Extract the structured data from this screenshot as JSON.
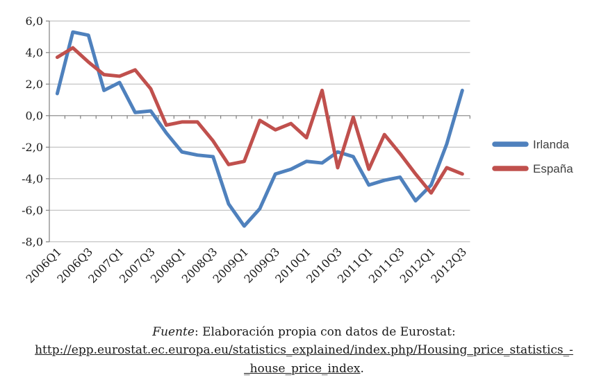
{
  "chart_data": {
    "type": "line",
    "x_categories": [
      "2006Q1",
      "2006Q2",
      "2006Q3",
      "2006Q4",
      "2007Q1",
      "2007Q2",
      "2007Q3",
      "2007Q4",
      "2008Q1",
      "2008Q2",
      "2008Q3",
      "2008Q4",
      "2009Q1",
      "2009Q2",
      "2009Q3",
      "2009Q4",
      "2010Q1",
      "2010Q2",
      "2010Q3",
      "2010Q4",
      "2011Q1",
      "2011Q2",
      "2011Q3",
      "2011Q4",
      "2012Q1",
      "2012Q2",
      "2012Q3"
    ],
    "x_tick_labels": [
      "2006Q1",
      "2006Q3",
      "2007Q1",
      "2007Q3",
      "2008Q1",
      "2008Q3",
      "2009Q1",
      "2009Q3",
      "2010Q1",
      "2010Q3",
      "2011Q1",
      "2011Q3",
      "2012Q1",
      "2012Q3"
    ],
    "series": [
      {
        "name": "Irlanda",
        "color": "#4F81BD",
        "values": [
          1.4,
          5.3,
          5.1,
          1.6,
          2.1,
          0.2,
          0.3,
          -1.1,
          -2.3,
          -2.5,
          -2.6,
          -5.6,
          -7.0,
          -5.9,
          -3.7,
          -3.4,
          -2.9,
          -3.0,
          -2.3,
          -2.6,
          -4.4,
          -4.1,
          -3.9,
          -5.4,
          -4.4,
          -1.8,
          1.6
        ]
      },
      {
        "name": "España",
        "color": "#C0504D",
        "values": [
          3.7,
          4.3,
          3.4,
          2.6,
          2.5,
          2.9,
          1.7,
          -0.6,
          -0.4,
          -0.4,
          -1.6,
          -3.1,
          -2.9,
          -0.3,
          -0.9,
          -0.5,
          -1.4,
          1.6,
          -3.3,
          -0.1,
          -3.4,
          -1.2,
          -2.4,
          -3.7,
          -4.9,
          -3.3,
          -3.7
        ]
      }
    ],
    "ylim": [
      -8,
      6
    ],
    "ytick_step": 2,
    "ytick_values": [
      6,
      4,
      2,
      0,
      -2,
      -4,
      -6,
      -8
    ],
    "ytick_labels": [
      "6,0",
      "4,0",
      "2,0",
      "0,0",
      "-2,0",
      "-4,0",
      "-6,0",
      "-8,0"
    ],
    "grid": "horizontal",
    "legend_position": "right",
    "title": ""
  },
  "legend": {
    "items": [
      {
        "label": "Irlanda",
        "color": "#4F81BD"
      },
      {
        "label": "España",
        "color": "#C0504D"
      }
    ]
  },
  "caption": {
    "fuente_italic": "Fuente",
    "fuente_rest": ": Elaboración propia con datos de Eurostat:",
    "link_line_1": "http://epp.eurostat.ec.europa.eu/statistics_explained/index.php/Housing_price_statistics_-",
    "link_line_2": "_house_price_index",
    "after_link": "."
  },
  "colors": {
    "irlanda": "#4F81BD",
    "espana": "#C0504D",
    "gridline": "#B6B6B6",
    "axis": "#808080",
    "axis_label": "#1A1A1A",
    "legend_text": "#404040",
    "link": "#2E9AC0",
    "background": "#FFFFFF"
  }
}
